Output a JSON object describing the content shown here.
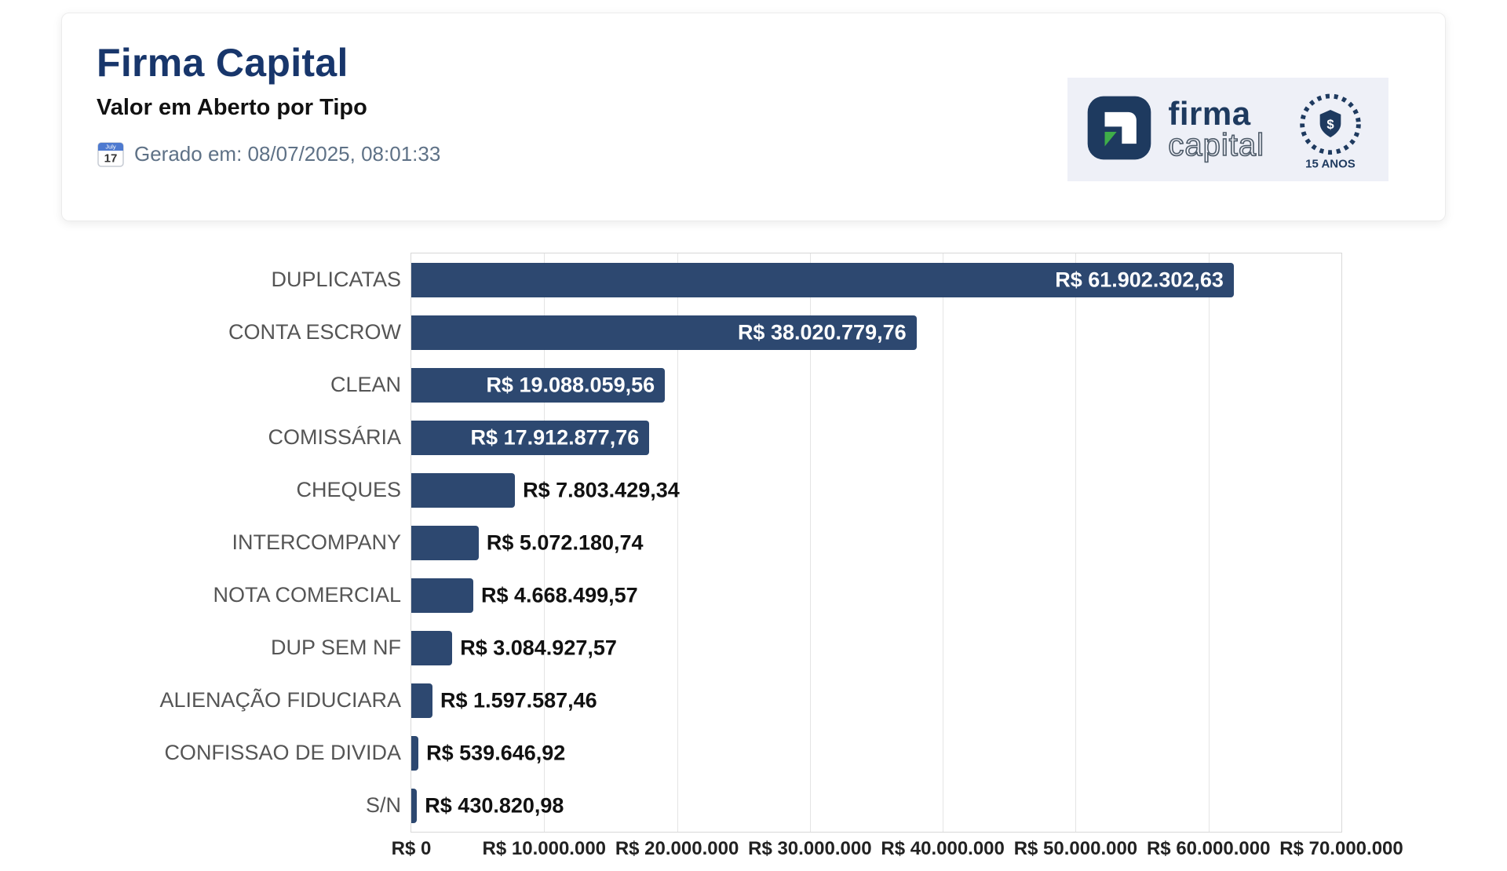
{
  "header": {
    "title": "Firma Capital",
    "subtitle": "Valor em Aberto por Tipo",
    "generated": "Gerado em: 08/07/2025, 08:01:33",
    "calendar_month": "July",
    "calendar_day": "17",
    "logo": {
      "brand_top": "firma",
      "brand_bottom": "capital",
      "badge_symbol": "$",
      "badge_text": "15 ANOS"
    }
  },
  "colors": {
    "title": "#18366b",
    "subtitle": "#111111",
    "generated_text": "#5e7186",
    "bar": "#2d4870",
    "grid": "#e4e4e4",
    "plot_border": "#d8d8d8",
    "category_text": "#555555",
    "value_inside": "#ffffff",
    "value_outside": "#111111",
    "logo_navy": "#1e3a5f",
    "logo_green": "#3fae49",
    "logo_panel_bg": "#eef0f7"
  },
  "chart_data": {
    "type": "bar",
    "orientation": "horizontal",
    "title": "Valor em Aberto por Tipo",
    "categories": [
      "DUPLICATAS",
      "CONTA ESCROW",
      "CLEAN",
      "COMISSÁRIA",
      "CHEQUES",
      "INTERCOMPANY",
      "NOTA COMERCIAL",
      "DUP SEM NF",
      "ALIENAÇÃO FIDUCIARA",
      "CONFISSAO DE DIVIDA",
      "S/N"
    ],
    "values": [
      61902302.63,
      38020779.76,
      19088059.56,
      17912877.76,
      7803429.34,
      5072180.74,
      4668499.57,
      3084927.57,
      1597587.46,
      539646.92,
      430820.98
    ],
    "value_labels": [
      "R$ 61.902.302,63",
      "R$ 38.020.779,76",
      "R$ 19.088.059,56",
      "R$ 17.912.877,76",
      "R$ 7.803.429,34",
      "R$ 5.072.180,74",
      "R$ 4.668.499,57",
      "R$ 3.084.927,57",
      "R$ 1.597.587,46",
      "R$ 539.646,92",
      "R$ 430.820,98"
    ],
    "xlim": [
      0,
      70000000
    ],
    "x_ticks": [
      0,
      10000000,
      20000000,
      30000000,
      40000000,
      50000000,
      60000000,
      70000000
    ],
    "x_tick_labels": [
      "R$ 0",
      "R$ 10.000.000",
      "R$ 20.000.000",
      "R$ 30.000.000",
      "R$ 40.000.000",
      "R$ 50.000.000",
      "R$ 60.000.000",
      "R$ 70.000.000"
    ],
    "grid": true,
    "legend": false,
    "bar_color": "#2d4870"
  }
}
